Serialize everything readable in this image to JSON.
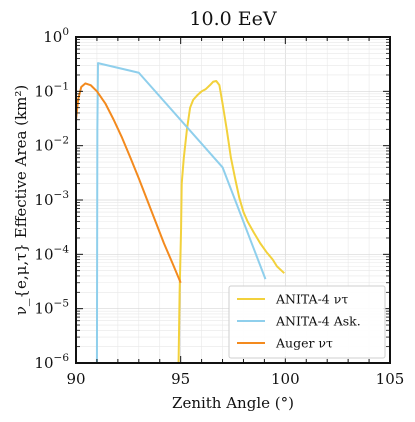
{
  "chart_data": {
    "type": "line",
    "title": "10.0 EeV",
    "xlabel": "Zenith Angle (°)",
    "ylabel": "ν_{e,μ,τ} Effective Area (km²)",
    "xlim": [
      90,
      105
    ],
    "ylim": [
      1e-06,
      1
    ],
    "yscale": "log",
    "grid": true,
    "legend_position": "bottom-right",
    "x_ticks": [
      90,
      95,
      100,
      105
    ],
    "y_ticks": [
      1e-06,
      1e-05,
      0.0001,
      0.001,
      0.01,
      0.1,
      1
    ],
    "x_tick_labels": [
      "90",
      "95",
      "100",
      "105"
    ],
    "series": [
      {
        "name": "ANITA-4 ν_τ",
        "color": "#f2d13c",
        "points": [
          [
            94.9,
            1e-06
          ],
          [
            94.95,
            2e-05
          ],
          [
            95.02,
            0.0003
          ],
          [
            95.05,
            0.002
          ],
          [
            95.15,
            0.006
          ],
          [
            95.3,
            0.02
          ],
          [
            95.45,
            0.05
          ],
          [
            95.6,
            0.07
          ],
          [
            95.8,
            0.085
          ],
          [
            96.0,
            0.1
          ],
          [
            96.2,
            0.11
          ],
          [
            96.4,
            0.13
          ],
          [
            96.55,
            0.15
          ],
          [
            96.7,
            0.155
          ],
          [
            96.85,
            0.13
          ],
          [
            97.0,
            0.06
          ],
          [
            97.2,
            0.02
          ],
          [
            97.4,
            0.006
          ],
          [
            97.6,
            0.0025
          ],
          [
            97.8,
            0.0011
          ],
          [
            98.0,
            0.0006
          ],
          [
            98.2,
            0.0004
          ],
          [
            98.5,
            0.00025
          ],
          [
            98.8,
            0.00016
          ],
          [
            99.1,
            0.00011
          ],
          [
            99.4,
            8e-05
          ],
          [
            99.6,
            6e-05
          ],
          [
            99.95,
            4.5e-05
          ]
        ]
      },
      {
        "name": "ANITA-4 Ask.",
        "color": "#8fcfec",
        "points": [
          [
            91.0,
            1e-06
          ],
          [
            91.02,
            0.02
          ],
          [
            91.05,
            0.33
          ],
          [
            93.0,
            0.22
          ],
          [
            97.0,
            0.004
          ],
          [
            99.05,
            3.5e-05
          ]
        ]
      },
      {
        "name": "Auger ν_τ",
        "color": "#f38a1e",
        "points": [
          [
            90.0,
            0.03
          ],
          [
            90.1,
            0.07
          ],
          [
            90.25,
            0.12
          ],
          [
            90.45,
            0.14
          ],
          [
            90.7,
            0.13
          ],
          [
            91.0,
            0.1
          ],
          [
            91.4,
            0.06
          ],
          [
            91.8,
            0.03
          ],
          [
            92.2,
            0.014
          ],
          [
            92.6,
            0.006
          ],
          [
            93.0,
            0.0025
          ],
          [
            93.4,
            0.001
          ],
          [
            93.8,
            0.0004
          ],
          [
            94.2,
            0.00016
          ],
          [
            94.6,
            7e-05
          ],
          [
            95.0,
            3e-05
          ]
        ]
      }
    ]
  }
}
